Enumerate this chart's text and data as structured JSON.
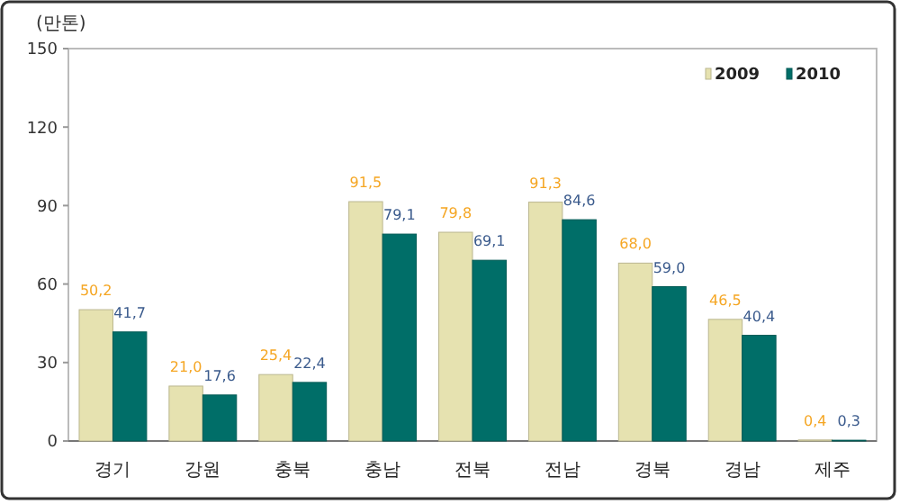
{
  "chart_data": {
    "type": "bar",
    "ylabel": "(만톤)",
    "categories": [
      "경기",
      "강원",
      "충북",
      "충남",
      "전북",
      "전남",
      "경북",
      "경남",
      "제주"
    ],
    "series": [
      {
        "name": "2009",
        "color": "#e6e2b0",
        "values": [
          50.2,
          21.0,
          25.4,
          91.5,
          79.8,
          91.3,
          68.0,
          46.5,
          0.4
        ],
        "value_labels": [
          "50,2",
          "21,0",
          "25,4",
          "91,5",
          "79,8",
          "91,3",
          "68,0",
          "46,5",
          "0,4"
        ]
      },
      {
        "name": "2010",
        "color": "#006e68",
        "values": [
          41.7,
          17.6,
          22.4,
          79.1,
          69.1,
          84.6,
          59.0,
          40.4,
          0.3
        ],
        "value_labels": [
          "41,7",
          "17,6",
          "22,4",
          "79,1",
          "69,1",
          "84,6",
          "59,0",
          "40,4",
          "0,3"
        ]
      }
    ],
    "ylim": [
      0,
      150
    ],
    "yticks": [
      0,
      30,
      60,
      90,
      120,
      150
    ],
    "grid": false,
    "legend": "top right"
  }
}
